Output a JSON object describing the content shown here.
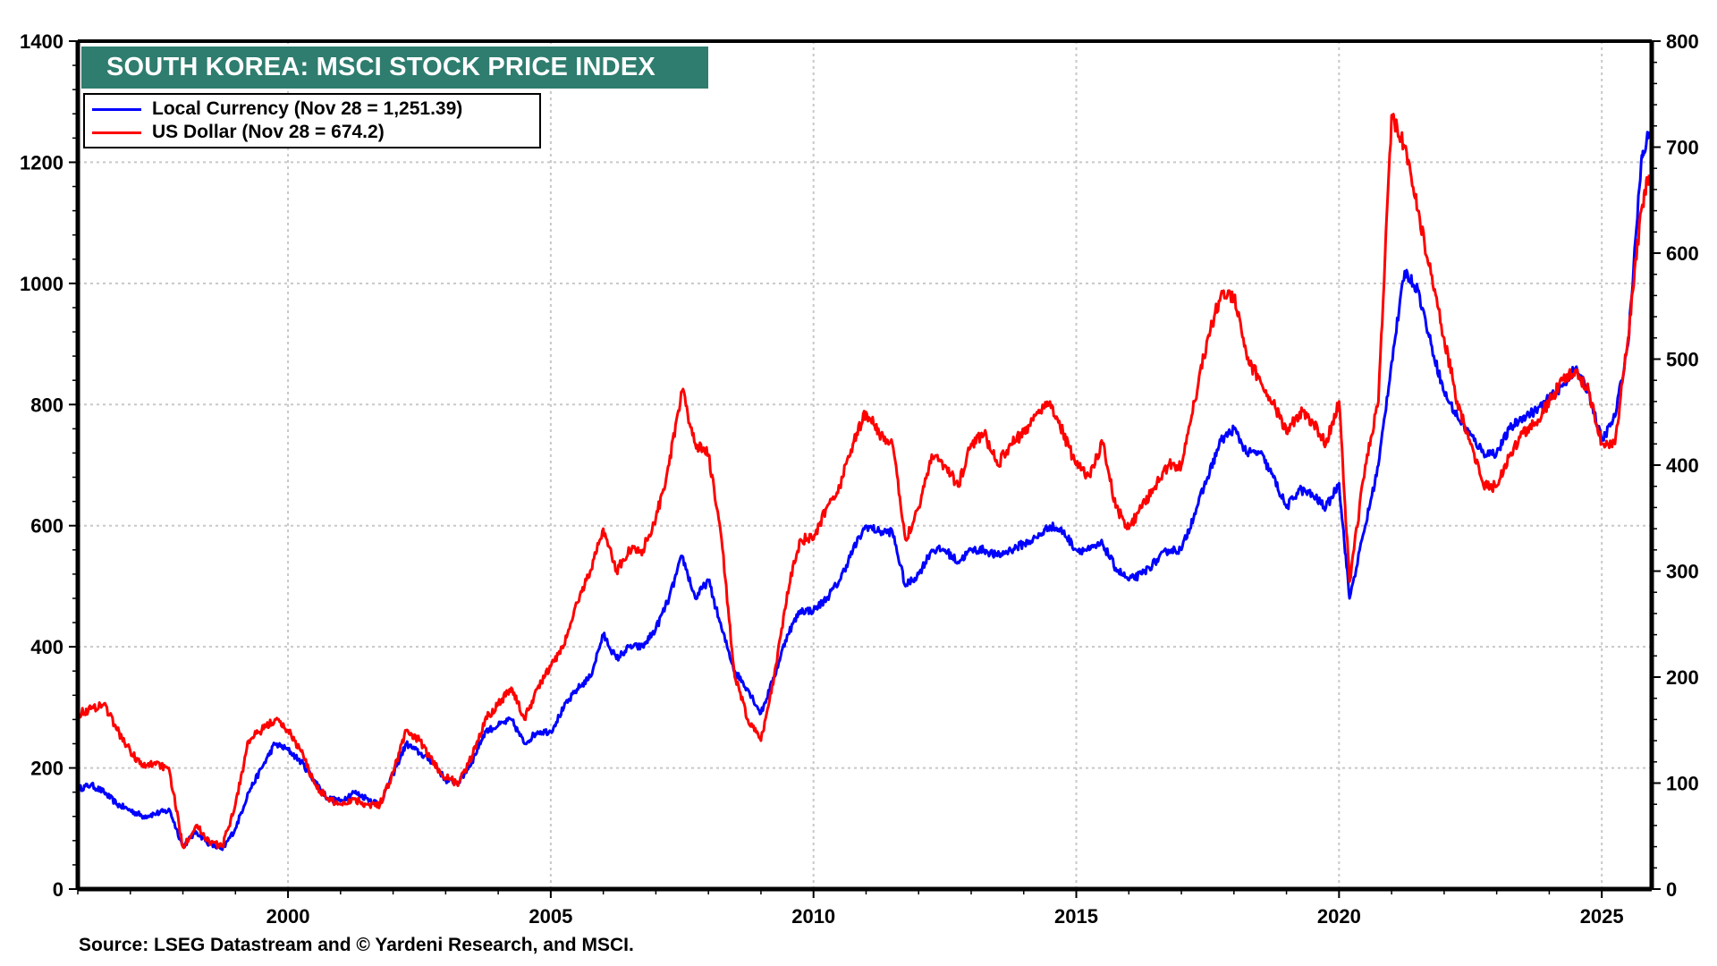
{
  "chart_data": {
    "type": "line",
    "title": "SOUTH KOREA: MSCI STOCK PRICE INDEX",
    "source": "Source: LSEG Datastream and © Yardeni Research, and MSCI.",
    "xlabel": "",
    "x_range": [
      1996.0,
      2025.95
    ],
    "x_ticks": [
      2000,
      2005,
      2010,
      2015,
      2020,
      2025
    ],
    "x_tick_labels": [
      "2000",
      "2005",
      "2010",
      "2015",
      "2020",
      "2025"
    ],
    "left_axis": {
      "ylim": [
        0,
        1400
      ],
      "ticks": [
        0,
        200,
        400,
        600,
        800,
        1000,
        1200,
        1400
      ],
      "tick_labels": [
        "0",
        "200",
        "400",
        "600",
        "800",
        "1000",
        "1200",
        "1400"
      ]
    },
    "right_axis": {
      "ylim": [
        0,
        800
      ],
      "ticks": [
        0,
        100,
        200,
        300,
        400,
        500,
        600,
        700,
        800
      ],
      "tick_labels": [
        "0",
        "100",
        "200",
        "300",
        "400",
        "500",
        "600",
        "700",
        "800"
      ]
    },
    "grid": true,
    "legend_placement": "top-left",
    "series": [
      {
        "name": "Local Currency (Nov 28 = 1,251.39)",
        "axis": "left",
        "color": "#0000ff",
        "x": [
          1996.0,
          1996.25,
          1996.5,
          1996.75,
          1997.0,
          1997.25,
          1997.5,
          1997.75,
          1998.0,
          1998.25,
          1998.5,
          1998.75,
          1999.0,
          1999.25,
          1999.5,
          1999.75,
          2000.0,
          2000.25,
          2000.5,
          2000.75,
          2001.0,
          2001.25,
          2001.5,
          2001.75,
          2002.0,
          2002.25,
          2002.5,
          2002.75,
          2003.0,
          2003.25,
          2003.5,
          2003.75,
          2004.0,
          2004.25,
          2004.5,
          2004.75,
          2005.0,
          2005.25,
          2005.5,
          2005.75,
          2006.0,
          2006.25,
          2006.5,
          2006.75,
          2007.0,
          2007.25,
          2007.5,
          2007.75,
          2008.0,
          2008.25,
          2008.5,
          2008.75,
          2009.0,
          2009.25,
          2009.5,
          2009.75,
          2010.0,
          2010.25,
          2010.5,
          2010.75,
          2011.0,
          2011.25,
          2011.5,
          2011.75,
          2012.0,
          2012.25,
          2012.5,
          2012.75,
          2013.0,
          2013.25,
          2013.5,
          2013.75,
          2014.0,
          2014.25,
          2014.5,
          2014.75,
          2015.0,
          2015.25,
          2015.5,
          2015.75,
          2016.0,
          2016.25,
          2016.5,
          2016.75,
          2017.0,
          2017.25,
          2017.5,
          2017.75,
          2018.0,
          2018.25,
          2018.5,
          2018.75,
          2019.0,
          2019.25,
          2019.5,
          2019.75,
          2020.0,
          2020.2,
          2020.5,
          2020.75,
          2021.0,
          2021.25,
          2021.5,
          2021.75,
          2022.0,
          2022.25,
          2022.5,
          2022.75,
          2023.0,
          2023.25,
          2023.5,
          2023.75,
          2024.0,
          2024.25,
          2024.5,
          2024.75,
          2025.0,
          2025.25,
          2025.5,
          2025.75,
          2025.9
        ],
        "values": [
          165,
          172,
          160,
          140,
          130,
          120,
          125,
          130,
          70,
          95,
          75,
          65,
          100,
          160,
          200,
          240,
          230,
          210,
          180,
          150,
          145,
          160,
          150,
          140,
          190,
          240,
          225,
          210,
          180,
          175,
          210,
          260,
          270,
          280,
          240,
          260,
          260,
          300,
          330,
          350,
          420,
          380,
          400,
          400,
          430,
          480,
          550,
          480,
          510,
          430,
          360,
          330,
          290,
          350,
          420,
          460,
          460,
          480,
          510,
          560,
          600,
          590,
          590,
          500,
          520,
          560,
          560,
          540,
          560,
          560,
          550,
          560,
          570,
          580,
          600,
          590,
          560,
          560,
          570,
          530,
          510,
          520,
          540,
          560,
          560,
          620,
          680,
          740,
          760,
          720,
          720,
          680,
          630,
          660,
          650,
          630,
          670,
          480,
          600,
          700,
          870,
          1020,
          990,
          900,
          820,
          780,
          750,
          720,
          720,
          760,
          780,
          790,
          810,
          830,
          860,
          820,
          740,
          780,
          900,
          1200,
          1251
        ]
      },
      {
        "name": "US Dollar (Nov 28 = 674.2)",
        "axis": "right",
        "color": "#ff0000",
        "x": [
          1996.0,
          1996.25,
          1996.5,
          1996.75,
          1997.0,
          1997.25,
          1997.5,
          1997.75,
          1998.0,
          1998.25,
          1998.5,
          1998.75,
          1999.0,
          1999.25,
          1999.5,
          1999.75,
          2000.0,
          2000.25,
          2000.5,
          2000.75,
          2001.0,
          2001.25,
          2001.5,
          2001.75,
          2002.0,
          2002.25,
          2002.5,
          2002.75,
          2003.0,
          2003.25,
          2003.5,
          2003.75,
          2004.0,
          2004.25,
          2004.5,
          2004.75,
          2005.0,
          2005.25,
          2005.5,
          2005.75,
          2006.0,
          2006.25,
          2006.5,
          2006.75,
          2007.0,
          2007.25,
          2007.5,
          2007.75,
          2008.0,
          2008.25,
          2008.5,
          2008.75,
          2009.0,
          2009.25,
          2009.5,
          2009.75,
          2010.0,
          2010.25,
          2010.5,
          2010.75,
          2011.0,
          2011.25,
          2011.5,
          2011.75,
          2012.0,
          2012.25,
          2012.5,
          2012.75,
          2013.0,
          2013.25,
          2013.5,
          2013.75,
          2014.0,
          2014.25,
          2014.5,
          2014.75,
          2015.0,
          2015.25,
          2015.5,
          2015.75,
          2016.0,
          2016.25,
          2016.5,
          2016.75,
          2017.0,
          2017.25,
          2017.5,
          2017.75,
          2018.0,
          2018.25,
          2018.5,
          2018.75,
          2019.0,
          2019.25,
          2019.5,
          2019.75,
          2020.0,
          2020.2,
          2020.5,
          2020.75,
          2021.0,
          2021.25,
          2021.5,
          2021.75,
          2022.0,
          2022.25,
          2022.5,
          2022.75,
          2023.0,
          2023.25,
          2023.5,
          2023.75,
          2024.0,
          2024.25,
          2024.5,
          2024.75,
          2025.0,
          2025.25,
          2025.5,
          2025.75,
          2025.9
        ],
        "values": [
          165,
          170,
          175,
          150,
          130,
          115,
          120,
          110,
          40,
          60,
          45,
          40,
          80,
          140,
          150,
          160,
          150,
          130,
          100,
          85,
          80,
          85,
          80,
          80,
          110,
          150,
          140,
          120,
          105,
          100,
          125,
          160,
          175,
          190,
          160,
          190,
          210,
          230,
          270,
          300,
          340,
          300,
          320,
          320,
          350,
          400,
          470,
          420,
          410,
          330,
          200,
          160,
          140,
          200,
          280,
          330,
          330,
          360,
          380,
          420,
          450,
          430,
          420,
          330,
          360,
          410,
          400,
          380,
          420,
          430,
          400,
          420,
          430,
          450,
          460,
          430,
          400,
          390,
          420,
          360,
          340,
          360,
          380,
          400,
          400,
          460,
          520,
          560,
          560,
          500,
          480,
          460,
          430,
          450,
          440,
          420,
          460,
          290,
          400,
          460,
          730,
          700,
          640,
          580,
          520,
          460,
          420,
          380,
          380,
          410,
          430,
          440,
          460,
          480,
          490,
          470,
          420,
          420,
          520,
          640,
          674
        ]
      }
    ]
  }
}
